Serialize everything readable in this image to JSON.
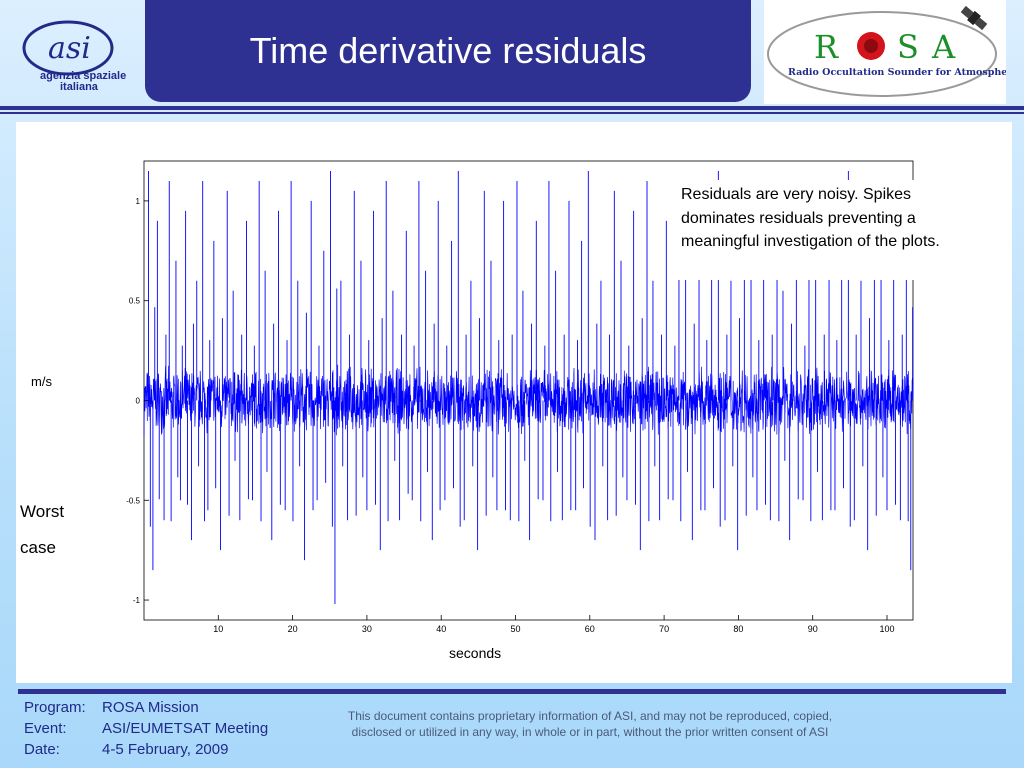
{
  "slide": {
    "title": "Time derivative residuals",
    "colors": {
      "title_bg": "#2e3192",
      "accent": "#2e3192",
      "signal": "#0000ff"
    }
  },
  "logos": {
    "asi": {
      "line1": "agenzia spaziale",
      "line2": "italiana",
      "mark": "asi"
    },
    "rosa": {
      "letters": [
        "R",
        "S",
        "A"
      ],
      "tagline": "Radio Occultation Sounder for Atmosphere"
    }
  },
  "annotation": "Residuals are very noisy. Spikes dominates residuals preventing a meaningful investigation of the plots.",
  "side_note": "Worst case",
  "footer": {
    "program_label": "Program:",
    "program_value": "ROSA Mission",
    "event_label": "Event:",
    "event_value": "ASI/EUMETSAT Meeting",
    "date_label": "Date:",
    "date_value": "4-5 February, 2009",
    "disclaimer": "This document contains proprietary information of ASI, and may not be reproduced, copied, disclosed or utilized in any way, in whole or in part, without the prior written consent of ASI"
  },
  "chart_data": {
    "type": "line",
    "title": "",
    "xlabel": "seconds",
    "ylabel": "m/s",
    "xlim": [
      0,
      103.5
    ],
    "ylim": [
      -1.1,
      1.2
    ],
    "xticks": [
      10,
      20,
      30,
      40,
      50,
      60,
      70,
      80,
      90,
      100
    ],
    "yticks": [
      1,
      0.5,
      0,
      -0.5,
      -1
    ],
    "ytick_labels": [
      "1",
      "0.5",
      "0",
      "-0.5",
      "-1"
    ],
    "grid": false,
    "series": [
      {
        "color": "#0000ff",
        "description_stats": {
          "core_band": [
            -0.15,
            0.15
          ],
          "spike_range": [
            -1.05,
            1.2
          ]
        },
        "spikes": [
          [
            0.6,
            1.15
          ],
          [
            1.2,
            -0.85
          ],
          [
            1.8,
            0.9
          ],
          [
            2.7,
            -0.6
          ],
          [
            3.4,
            1.1
          ],
          [
            4.3,
            0.7
          ],
          [
            4.9,
            -0.5
          ],
          [
            5.6,
            0.95
          ],
          [
            6.4,
            -0.7
          ],
          [
            7.1,
            0.6
          ],
          [
            7.9,
            1.1
          ],
          [
            8.6,
            -0.55
          ],
          [
            9.4,
            0.8
          ],
          [
            10.3,
            -0.75
          ],
          [
            11.2,
            1.05
          ],
          [
            12.0,
            0.55
          ],
          [
            12.9,
            -0.6
          ],
          [
            13.8,
            0.9
          ],
          [
            14.6,
            -0.5
          ],
          [
            15.5,
            1.1
          ],
          [
            16.3,
            0.65
          ],
          [
            17.2,
            -0.7
          ],
          [
            18.1,
            0.95
          ],
          [
            19.0,
            -0.55
          ],
          [
            19.8,
            1.1
          ],
          [
            20.7,
            0.6
          ],
          [
            21.6,
            -0.8
          ],
          [
            22.5,
            1.0
          ],
          [
            23.3,
            -0.5
          ],
          [
            24.2,
            0.75
          ],
          [
            25.1,
            1.15
          ],
          [
            25.7,
            -1.02
          ],
          [
            26.5,
            0.6
          ],
          [
            27.4,
            -0.6
          ],
          [
            28.3,
            1.05
          ],
          [
            29.2,
            0.7
          ],
          [
            30.0,
            -0.55
          ],
          [
            30.9,
            0.95
          ],
          [
            31.8,
            -0.75
          ],
          [
            32.6,
            1.1
          ],
          [
            33.5,
            0.55
          ],
          [
            34.4,
            -0.6
          ],
          [
            35.3,
            0.85
          ],
          [
            36.1,
            -0.5
          ],
          [
            37.0,
            1.1
          ],
          [
            37.9,
            0.65
          ],
          [
            38.8,
            -0.7
          ],
          [
            39.6,
            1.0
          ],
          [
            40.5,
            -0.5
          ],
          [
            41.4,
            0.8
          ],
          [
            42.3,
            1.15
          ],
          [
            43.1,
            -0.6
          ],
          [
            44.0,
            0.6
          ],
          [
            44.9,
            -0.75
          ],
          [
            45.8,
            1.05
          ],
          [
            46.7,
            0.7
          ],
          [
            47.5,
            -0.55
          ],
          [
            48.4,
            1.0
          ],
          [
            49.3,
            -0.6
          ],
          [
            50.2,
            1.1
          ],
          [
            51.0,
            0.55
          ],
          [
            51.9,
            -0.7
          ],
          [
            52.8,
            0.9
          ],
          [
            53.7,
            -0.5
          ],
          [
            54.5,
            1.1
          ],
          [
            55.4,
            0.65
          ],
          [
            56.3,
            -0.6
          ],
          [
            57.2,
            1.0
          ],
          [
            58.1,
            -0.55
          ],
          [
            58.9,
            0.8
          ],
          [
            59.8,
            1.15
          ],
          [
            60.7,
            -0.7
          ],
          [
            61.5,
            0.6
          ],
          [
            62.4,
            -0.6
          ],
          [
            63.3,
            1.05
          ],
          [
            64.2,
            0.7
          ],
          [
            65.0,
            -0.5
          ],
          [
            65.9,
            0.95
          ],
          [
            66.8,
            -0.75
          ],
          [
            67.7,
            1.1
          ],
          [
            68.5,
            0.6
          ],
          [
            69.4,
            -0.6
          ],
          [
            70.3,
            0.9
          ],
          [
            71.2,
            -0.5
          ],
          [
            72.0,
            1.1
          ],
          [
            72.9,
            0.65
          ],
          [
            73.8,
            -0.7
          ],
          [
            74.7,
            1.0
          ],
          [
            75.5,
            -0.55
          ],
          [
            76.4,
            0.8
          ],
          [
            77.3,
            1.15
          ],
          [
            78.2,
            -0.6
          ],
          [
            79.0,
            0.6
          ],
          [
            79.9,
            -0.75
          ],
          [
            80.8,
            1.05
          ],
          [
            81.7,
            0.7
          ],
          [
            82.5,
            -0.55
          ],
          [
            83.4,
            0.95
          ],
          [
            84.3,
            -0.6
          ],
          [
            85.2,
            1.1
          ],
          [
            86.0,
            0.55
          ],
          [
            86.9,
            -0.7
          ],
          [
            87.8,
            0.9
          ],
          [
            88.7,
            -0.5
          ],
          [
            89.5,
            1.1
          ],
          [
            90.4,
            0.65
          ],
          [
            91.3,
            -0.6
          ],
          [
            92.2,
            1.0
          ],
          [
            93.0,
            -0.55
          ],
          [
            93.9,
            0.8
          ],
          [
            94.8,
            1.15
          ],
          [
            95.6,
            -0.6
          ],
          [
            96.5,
            0.6
          ],
          [
            97.4,
            -0.75
          ],
          [
            98.3,
            1.05
          ],
          [
            99.2,
            0.7
          ],
          [
            100.0,
            -0.55
          ],
          [
            100.9,
            0.95
          ],
          [
            101.8,
            -0.6
          ],
          [
            102.6,
            1.1
          ],
          [
            103.2,
            -0.85
          ]
        ]
      }
    ]
  }
}
